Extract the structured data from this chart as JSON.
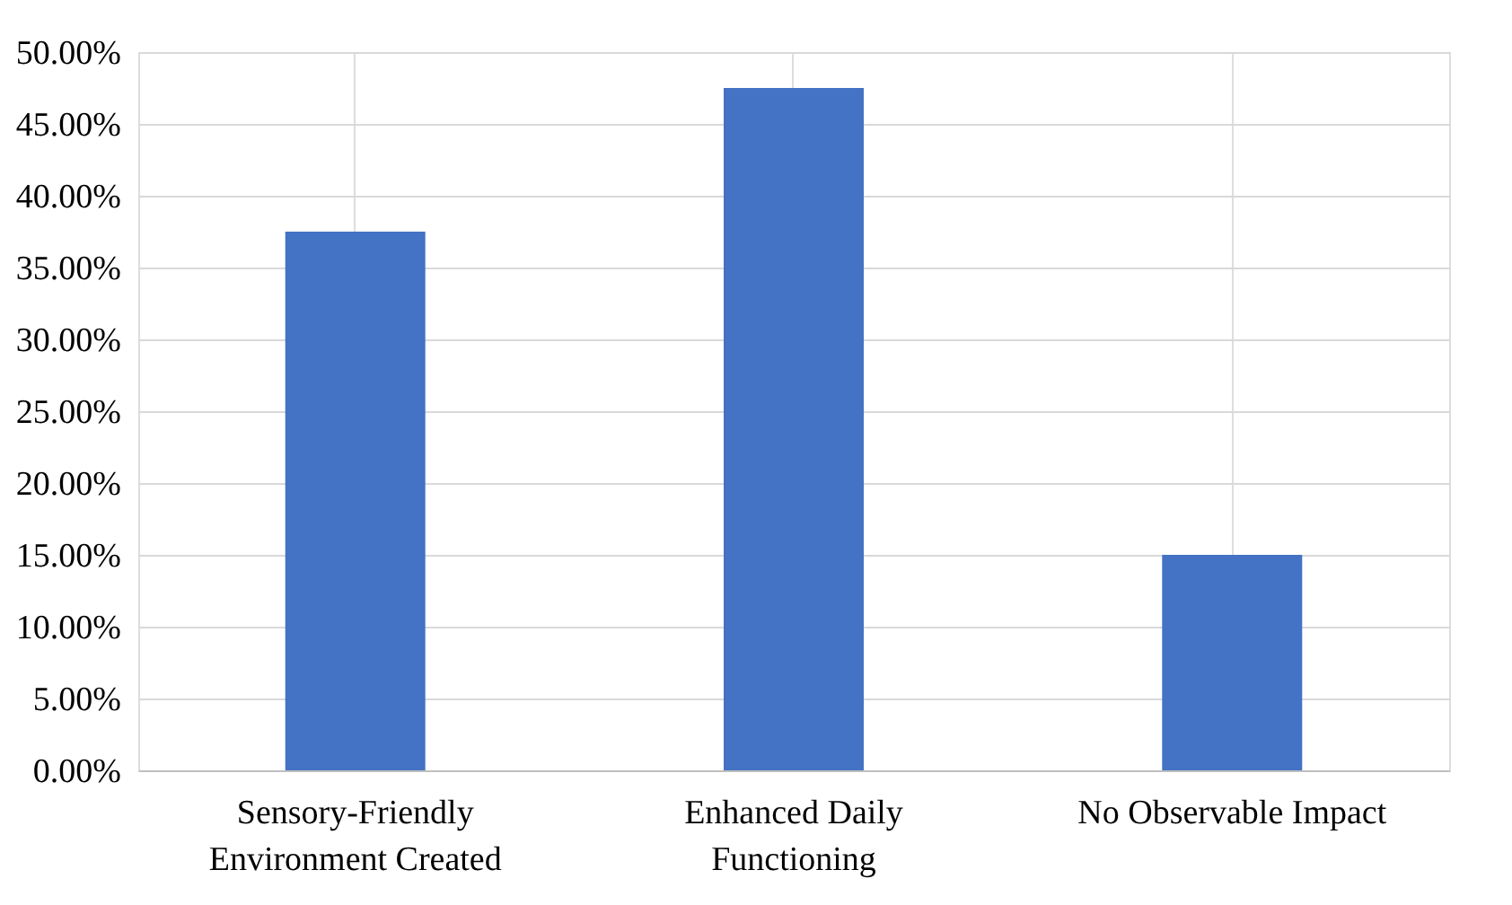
{
  "chart_data": {
    "type": "bar",
    "categories": [
      "Sensory-Friendly Environment Created",
      "Enhanced Daily Functioning",
      "No Observable Impact"
    ],
    "values": [
      37.5,
      47.5,
      15
    ],
    "color": "#4472c4",
    "ylim": [
      0,
      50
    ],
    "yticks": [
      {
        "value": 0,
        "label": "0.00%"
      },
      {
        "value": 5,
        "label": "5.00%"
      },
      {
        "value": 10,
        "label": "10.00%"
      },
      {
        "value": 15,
        "label": "15.00%"
      },
      {
        "value": 20,
        "label": "20.00%"
      },
      {
        "value": 25,
        "label": "25.00%"
      },
      {
        "value": 30,
        "label": "30.00%"
      },
      {
        "value": 35,
        "label": "35.00%"
      },
      {
        "value": 40,
        "label": "40.00%"
      },
      {
        "value": 45,
        "label": "45.00%"
      },
      {
        "value": 50,
        "label": "50.00%"
      }
    ],
    "grid": true
  }
}
